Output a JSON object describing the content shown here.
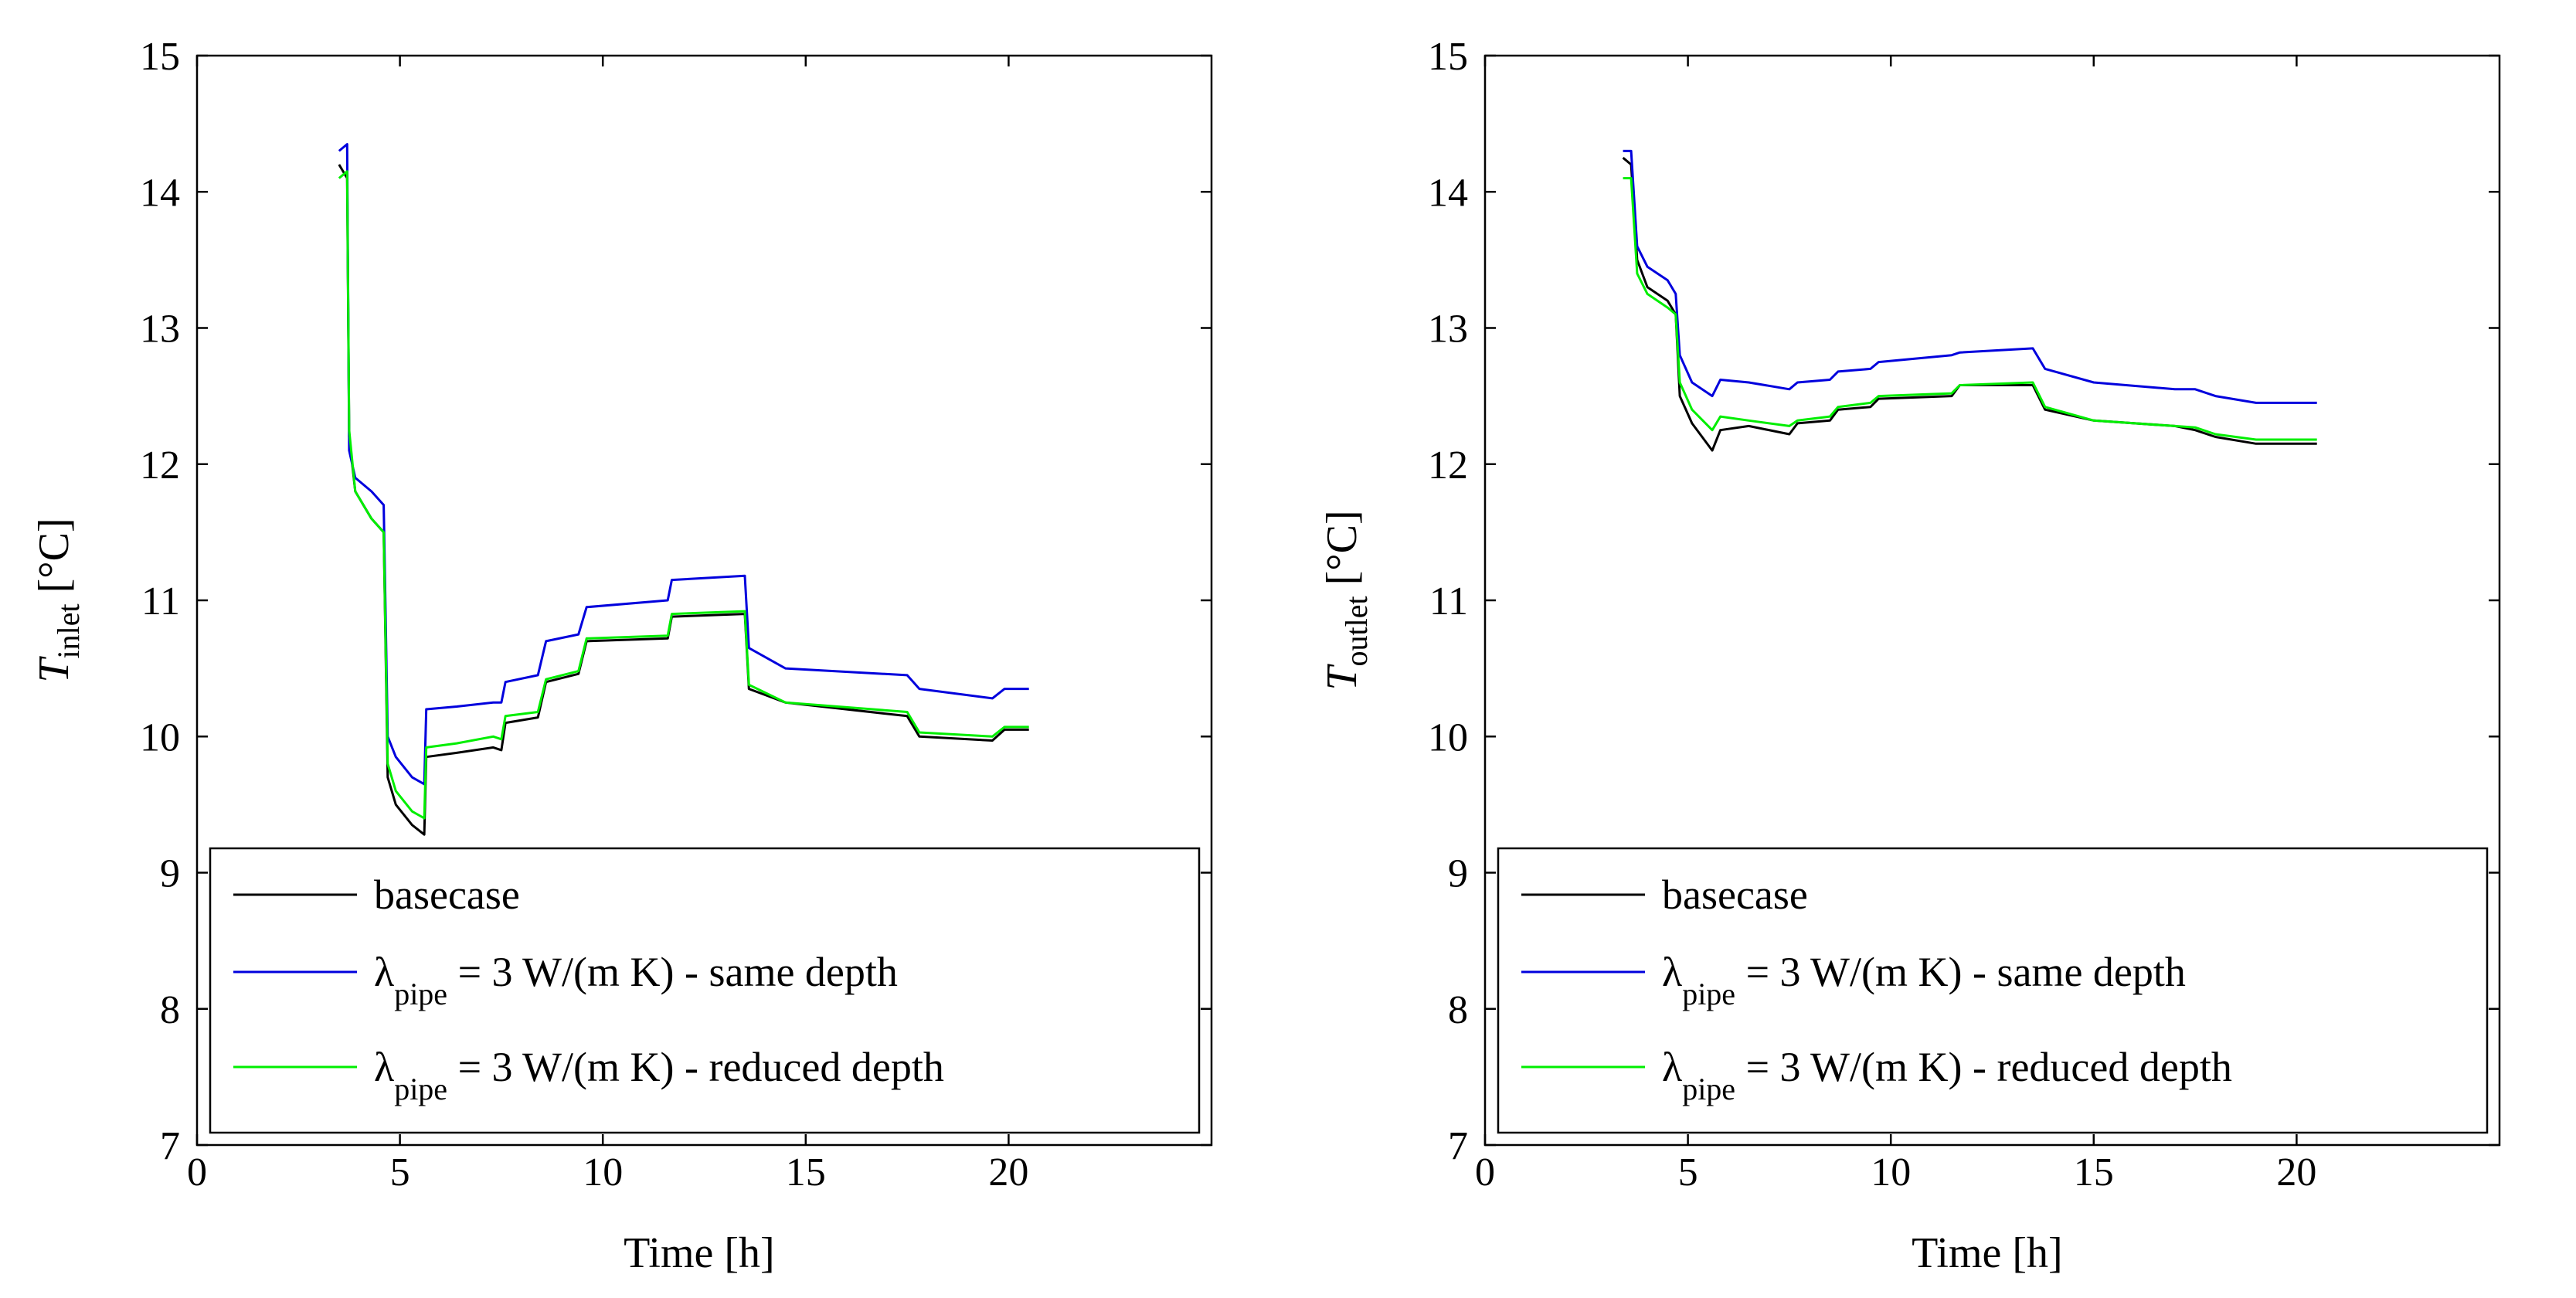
{
  "chart_data": [
    {
      "type": "line",
      "id": "inlet",
      "ylabel_symbol": "T",
      "ylabel_sub": "inlet",
      "ylabel_unit": "[°C]",
      "xlabel": "Time [h]",
      "xlim": [
        0,
        25
      ],
      "ylim": [
        7,
        15
      ],
      "xticks": [
        0,
        5,
        10,
        15,
        20
      ],
      "yticks": [
        7,
        8,
        9,
        10,
        11,
        12,
        13,
        14,
        15
      ],
      "legend_position": "bottom",
      "series": [
        {
          "name": "basecase",
          "legend_main": "basecase",
          "legend_sub": "",
          "legend_rest": "",
          "color": "#000000",
          "points": [
            [
              3.5,
              14.2
            ],
            [
              3.7,
              14.1
            ],
            [
              3.75,
              12.2
            ],
            [
              3.9,
              11.8
            ],
            [
              4.3,
              11.6
            ],
            [
              4.6,
              11.5
            ],
            [
              4.7,
              9.7
            ],
            [
              4.9,
              9.5
            ],
            [
              5.3,
              9.35
            ],
            [
              5.6,
              9.28
            ],
            [
              5.65,
              9.85
            ],
            [
              6.4,
              9.88
            ],
            [
              7.3,
              9.92
            ],
            [
              7.5,
              9.9
            ],
            [
              7.6,
              10.1
            ],
            [
              8.4,
              10.14
            ],
            [
              8.6,
              10.4
            ],
            [
              9.4,
              10.46
            ],
            [
              9.6,
              10.7
            ],
            [
              11.6,
              10.72
            ],
            [
              11.7,
              10.88
            ],
            [
              13.5,
              10.9
            ],
            [
              13.6,
              10.35
            ],
            [
              14.5,
              10.25
            ],
            [
              17.5,
              10.15
            ],
            [
              17.8,
              10.0
            ],
            [
              19.6,
              9.97
            ],
            [
              19.9,
              10.05
            ],
            [
              20.5,
              10.05
            ]
          ]
        },
        {
          "name": "λpipe = 3 W/(m K) - same depth",
          "legend_main": "λ",
          "legend_sub": "pipe",
          "legend_rest": " = 3 W/(m K) - same depth",
          "color": "#0000dd",
          "points": [
            [
              3.5,
              14.3
            ],
            [
              3.7,
              14.35
            ],
            [
              3.75,
              12.1
            ],
            [
              3.9,
              11.9
            ],
            [
              4.3,
              11.8
            ],
            [
              4.6,
              11.7
            ],
            [
              4.7,
              10.0
            ],
            [
              4.9,
              9.85
            ],
            [
              5.3,
              9.7
            ],
            [
              5.6,
              9.65
            ],
            [
              5.65,
              10.2
            ],
            [
              6.4,
              10.22
            ],
            [
              7.3,
              10.25
            ],
            [
              7.5,
              10.25
            ],
            [
              7.6,
              10.4
            ],
            [
              8.4,
              10.45
            ],
            [
              8.6,
              10.7
            ],
            [
              9.4,
              10.75
            ],
            [
              9.6,
              10.95
            ],
            [
              11.6,
              11.0
            ],
            [
              11.7,
              11.15
            ],
            [
              13.5,
              11.18
            ],
            [
              13.6,
              10.65
            ],
            [
              14.5,
              10.5
            ],
            [
              17.5,
              10.45
            ],
            [
              17.8,
              10.35
            ],
            [
              19.6,
              10.28
            ],
            [
              19.9,
              10.35
            ],
            [
              20.5,
              10.35
            ]
          ]
        },
        {
          "name": "λpipe = 3 W/(m K) - reduced depth",
          "legend_main": "λ",
          "legend_sub": "pipe",
          "legend_rest": " = 3 W/(m K) - reduced depth",
          "color": "#00ee00",
          "points": [
            [
              3.5,
              14.1
            ],
            [
              3.7,
              14.15
            ],
            [
              3.75,
              12.25
            ],
            [
              3.9,
              11.8
            ],
            [
              4.3,
              11.6
            ],
            [
              4.6,
              11.5
            ],
            [
              4.7,
              9.8
            ],
            [
              4.9,
              9.6
            ],
            [
              5.3,
              9.45
            ],
            [
              5.6,
              9.4
            ],
            [
              5.65,
              9.92
            ],
            [
              6.4,
              9.95
            ],
            [
              7.3,
              10.0
            ],
            [
              7.5,
              9.98
            ],
            [
              7.6,
              10.15
            ],
            [
              8.4,
              10.18
            ],
            [
              8.6,
              10.42
            ],
            [
              9.4,
              10.48
            ],
            [
              9.6,
              10.72
            ],
            [
              11.6,
              10.74
            ],
            [
              11.7,
              10.9
            ],
            [
              13.5,
              10.92
            ],
            [
              13.6,
              10.38
            ],
            [
              14.5,
              10.25
            ],
            [
              17.5,
              10.18
            ],
            [
              17.8,
              10.03
            ],
            [
              19.6,
              10.0
            ],
            [
              19.9,
              10.07
            ],
            [
              20.5,
              10.07
            ]
          ]
        }
      ]
    },
    {
      "type": "line",
      "id": "outlet",
      "ylabel_symbol": "T",
      "ylabel_sub": "outlet",
      "ylabel_unit": "[°C]",
      "xlabel": "Time [h]",
      "xlim": [
        0,
        25
      ],
      "ylim": [
        7,
        15
      ],
      "xticks": [
        0,
        5,
        10,
        15,
        20
      ],
      "yticks": [
        7,
        8,
        9,
        10,
        11,
        12,
        13,
        14,
        15
      ],
      "legend_position": "bottom",
      "series": [
        {
          "name": "basecase",
          "legend_main": "basecase",
          "legend_sub": "",
          "legend_rest": "",
          "color": "#000000",
          "points": [
            [
              3.4,
              14.25
            ],
            [
              3.6,
              14.2
            ],
            [
              3.75,
              13.5
            ],
            [
              4.0,
              13.3
            ],
            [
              4.5,
              13.2
            ],
            [
              4.7,
              13.1
            ],
            [
              4.8,
              12.5
            ],
            [
              5.1,
              12.3
            ],
            [
              5.6,
              12.1
            ],
            [
              5.8,
              12.25
            ],
            [
              6.5,
              12.28
            ],
            [
              7.5,
              12.22
            ],
            [
              7.7,
              12.3
            ],
            [
              8.5,
              12.32
            ],
            [
              8.7,
              12.4
            ],
            [
              9.5,
              12.42
            ],
            [
              9.7,
              12.48
            ],
            [
              11.5,
              12.5
            ],
            [
              11.7,
              12.58
            ],
            [
              13.5,
              12.58
            ],
            [
              13.8,
              12.4
            ],
            [
              15,
              12.32
            ],
            [
              17,
              12.28
            ],
            [
              17.5,
              12.25
            ],
            [
              18,
              12.2
            ],
            [
              19,
              12.15
            ],
            [
              20.5,
              12.15
            ]
          ]
        },
        {
          "name": "λpipe = 3 W/(m K) - same depth",
          "legend_main": "λ",
          "legend_sub": "pipe",
          "legend_rest": " = 3 W/(m K) - same depth",
          "color": "#0000dd",
          "points": [
            [
              3.4,
              14.3
            ],
            [
              3.6,
              14.3
            ],
            [
              3.75,
              13.6
            ],
            [
              4.0,
              13.45
            ],
            [
              4.5,
              13.35
            ],
            [
              4.7,
              13.25
            ],
            [
              4.8,
              12.8
            ],
            [
              5.1,
              12.6
            ],
            [
              5.6,
              12.5
            ],
            [
              5.8,
              12.62
            ],
            [
              6.5,
              12.6
            ],
            [
              7.5,
              12.55
            ],
            [
              7.7,
              12.6
            ],
            [
              8.5,
              12.62
            ],
            [
              8.7,
              12.68
            ],
            [
              9.5,
              12.7
            ],
            [
              9.7,
              12.75
            ],
            [
              11.5,
              12.8
            ],
            [
              11.7,
              12.82
            ],
            [
              13.5,
              12.85
            ],
            [
              13.8,
              12.7
            ],
            [
              15,
              12.6
            ],
            [
              17,
              12.55
            ],
            [
              17.5,
              12.55
            ],
            [
              18,
              12.5
            ],
            [
              19,
              12.45
            ],
            [
              20.5,
              12.45
            ]
          ]
        },
        {
          "name": "λpipe = 3 W/(m K) - reduced depth",
          "legend_main": "λ",
          "legend_sub": "pipe",
          "legend_rest": " = 3 W/(m K) - reduced depth",
          "color": "#00ee00",
          "points": [
            [
              3.4,
              14.1
            ],
            [
              3.6,
              14.1
            ],
            [
              3.75,
              13.4
            ],
            [
              4.0,
              13.25
            ],
            [
              4.5,
              13.15
            ],
            [
              4.7,
              13.1
            ],
            [
              4.8,
              12.6
            ],
            [
              5.1,
              12.4
            ],
            [
              5.6,
              12.25
            ],
            [
              5.8,
              12.35
            ],
            [
              6.5,
              12.32
            ],
            [
              7.5,
              12.28
            ],
            [
              7.7,
              12.32
            ],
            [
              8.5,
              12.35
            ],
            [
              8.7,
              12.42
            ],
            [
              9.5,
              12.45
            ],
            [
              9.7,
              12.5
            ],
            [
              11.5,
              12.52
            ],
            [
              11.7,
              12.58
            ],
            [
              13.5,
              12.6
            ],
            [
              13.8,
              12.42
            ],
            [
              15,
              12.32
            ],
            [
              17,
              12.28
            ],
            [
              17.5,
              12.27
            ],
            [
              18,
              12.22
            ],
            [
              19,
              12.18
            ],
            [
              20.5,
              12.18
            ]
          ]
        }
      ]
    }
  ]
}
